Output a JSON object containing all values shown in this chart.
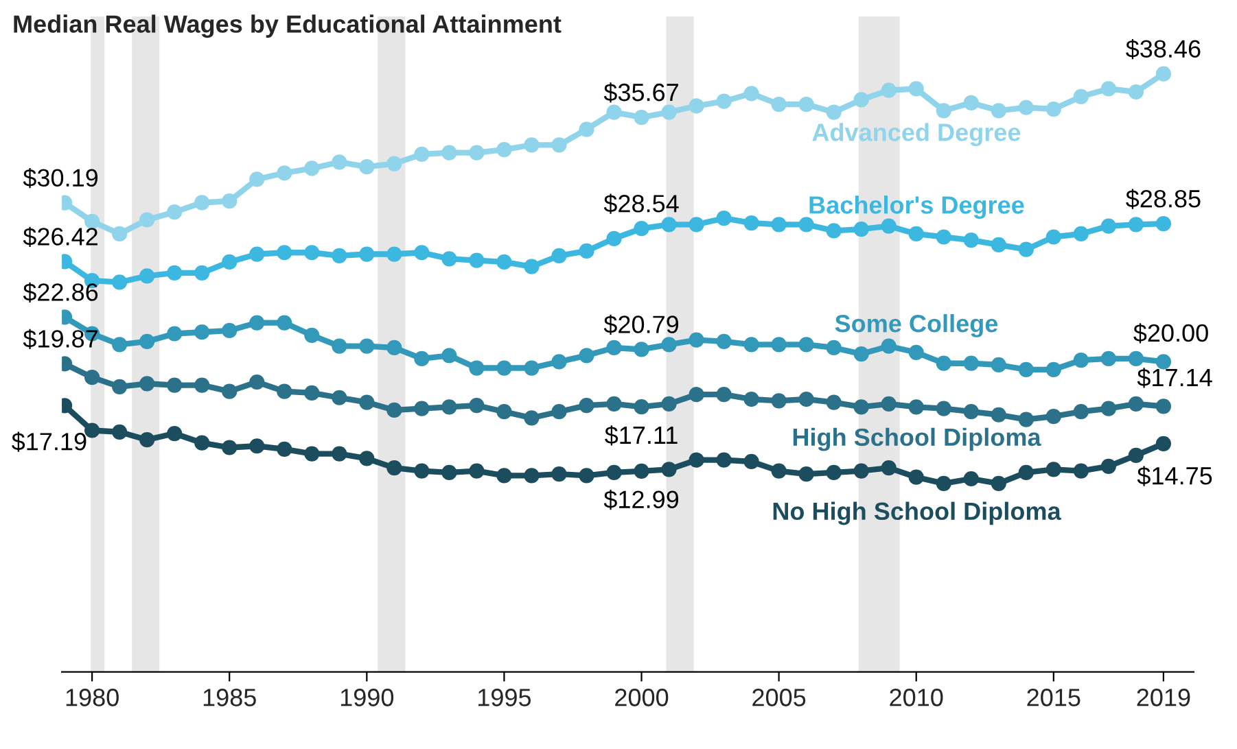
{
  "chart_data": {
    "type": "line",
    "title": "Median Real Wages by Educational Attainment",
    "x": [
      1979,
      1980,
      1981,
      1982,
      1983,
      1984,
      1985,
      1986,
      1987,
      1988,
      1989,
      1990,
      1991,
      1992,
      1993,
      1994,
      1995,
      1996,
      1997,
      1998,
      1999,
      2000,
      2001,
      2002,
      2003,
      2004,
      2005,
      2006,
      2007,
      2008,
      2009,
      2010,
      2011,
      2012,
      2013,
      2014,
      2015,
      2016,
      2017,
      2018,
      2019
    ],
    "xlim": [
      1978.9,
      2020.1
    ],
    "xticks": [
      1980,
      1985,
      1990,
      1995,
      2000,
      2005,
      2010,
      2015,
      2019
    ],
    "tick_labels": "x",
    "grid": false,
    "legend": false,
    "marker": "circle",
    "line_style": "solid",
    "series": [
      {
        "name": "Advanced Degree",
        "color": "#8fd4ea",
        "values": [
          30.19,
          29.0,
          28.2,
          29.1,
          29.6,
          30.2,
          30.3,
          31.7,
          32.1,
          32.4,
          32.8,
          32.5,
          32.7,
          33.3,
          33.4,
          33.4,
          33.6,
          33.9,
          33.9,
          34.9,
          36.0,
          35.67,
          36.0,
          36.4,
          36.7,
          37.2,
          36.5,
          36.5,
          36.0,
          36.8,
          37.4,
          37.5,
          36.1,
          36.6,
          36.1,
          36.3,
          36.2,
          37.0,
          37.5,
          37.3,
          38.46
        ],
        "value_labels": [
          "$30.19",
          null,
          null,
          null,
          null,
          null,
          null,
          null,
          null,
          null,
          null,
          null,
          null,
          null,
          null,
          null,
          null,
          null,
          null,
          null,
          null,
          "$35.67",
          null,
          null,
          null,
          null,
          null,
          null,
          null,
          null,
          null,
          null,
          null,
          null,
          null,
          null,
          null,
          null,
          null,
          null,
          "$38.46"
        ]
      },
      {
        "name": "Bachelor's Degree",
        "color": "#3bb7e0",
        "values": [
          26.42,
          25.2,
          25.1,
          25.5,
          25.7,
          25.7,
          26.4,
          26.9,
          27.0,
          27.0,
          26.8,
          26.9,
          26.9,
          27.0,
          26.6,
          26.5,
          26.4,
          26.1,
          26.8,
          27.1,
          27.9,
          28.54,
          28.8,
          28.8,
          29.2,
          28.9,
          28.8,
          28.8,
          28.4,
          28.5,
          28.7,
          28.2,
          28.0,
          27.8,
          27.5,
          27.2,
          28.0,
          28.2,
          28.7,
          28.8,
          28.85
        ],
        "value_labels": [
          "$26.42",
          null,
          null,
          null,
          null,
          null,
          null,
          null,
          null,
          null,
          null,
          null,
          null,
          null,
          null,
          null,
          null,
          null,
          null,
          null,
          null,
          "$28.54",
          null,
          null,
          null,
          null,
          null,
          null,
          null,
          null,
          null,
          null,
          null,
          null,
          null,
          null,
          null,
          null,
          null,
          null,
          "$28.85"
        ]
      },
      {
        "name": "Some College",
        "color": "#3399bb",
        "values": [
          22.86,
          21.8,
          21.1,
          21.3,
          21.8,
          21.9,
          22.0,
          22.5,
          22.5,
          21.7,
          21.0,
          21.0,
          20.9,
          20.2,
          20.4,
          19.6,
          19.6,
          19.6,
          20.0,
          20.4,
          20.9,
          20.79,
          21.1,
          21.4,
          21.3,
          21.1,
          21.1,
          21.1,
          20.9,
          20.5,
          21.0,
          20.6,
          19.9,
          19.9,
          19.8,
          19.5,
          19.5,
          20.1,
          20.2,
          20.2,
          20.0
        ],
        "value_labels": [
          "$22.86",
          null,
          null,
          null,
          null,
          null,
          null,
          null,
          null,
          null,
          null,
          null,
          null,
          null,
          null,
          null,
          null,
          null,
          null,
          null,
          null,
          "$20.79",
          null,
          null,
          null,
          null,
          null,
          null,
          null,
          null,
          null,
          null,
          null,
          null,
          null,
          null,
          null,
          null,
          null,
          null,
          "$20.00"
        ]
      },
      {
        "name": "High School Diploma",
        "color": "#2a7189",
        "values": [
          19.87,
          19.0,
          18.4,
          18.6,
          18.5,
          18.5,
          18.1,
          18.7,
          18.1,
          18.0,
          17.7,
          17.4,
          16.9,
          17.0,
          17.1,
          17.2,
          16.8,
          16.4,
          16.8,
          17.2,
          17.3,
          17.11,
          17.3,
          17.9,
          17.9,
          17.6,
          17.5,
          17.6,
          17.4,
          17.1,
          17.3,
          17.1,
          17.0,
          16.8,
          16.6,
          16.3,
          16.5,
          16.8,
          17.0,
          17.3,
          17.14
        ],
        "value_labels": [
          "$19.87",
          null,
          null,
          null,
          null,
          null,
          null,
          null,
          null,
          null,
          null,
          null,
          null,
          null,
          null,
          null,
          null,
          null,
          null,
          null,
          null,
          "$17.11",
          null,
          null,
          null,
          null,
          null,
          null,
          null,
          null,
          null,
          null,
          null,
          null,
          null,
          null,
          null,
          null,
          null,
          null,
          "$17.14"
        ]
      },
      {
        "name": "No High School Diploma",
        "color": "#1b4d5e",
        "values": [
          17.19,
          15.6,
          15.5,
          15.0,
          15.4,
          14.8,
          14.5,
          14.6,
          14.4,
          14.1,
          14.1,
          13.8,
          13.2,
          13.0,
          12.9,
          13.0,
          12.7,
          12.7,
          12.8,
          12.7,
          12.9,
          12.99,
          13.1,
          13.7,
          13.7,
          13.6,
          13.0,
          12.8,
          12.9,
          13.0,
          13.2,
          12.6,
          12.2,
          12.5,
          12.2,
          12.9,
          13.1,
          13.0,
          13.3,
          14.0,
          14.75
        ],
        "value_labels": [
          "$17.19",
          null,
          null,
          null,
          null,
          null,
          null,
          null,
          null,
          null,
          null,
          null,
          null,
          null,
          null,
          null,
          null,
          null,
          null,
          null,
          null,
          "$12.99",
          null,
          null,
          null,
          null,
          null,
          null,
          null,
          null,
          null,
          null,
          null,
          null,
          null,
          null,
          null,
          null,
          null,
          null,
          "$14.75"
        ]
      }
    ],
    "bands": [
      {
        "axis": "x",
        "from": 1979.95,
        "to": 1980.45,
        "color": "#e6e6e6"
      },
      {
        "axis": "x",
        "from": 1981.45,
        "to": 1982.45,
        "color": "#e6e6e6"
      },
      {
        "axis": "x",
        "from": 1990.4,
        "to": 1991.4,
        "color": "#e6e6e6"
      },
      {
        "axis": "x",
        "from": 2000.9,
        "to": 2001.9,
        "color": "#e6e6e6"
      },
      {
        "axis": "x",
        "from": 2007.9,
        "to": 2009.4,
        "color": "#e6e6e6"
      }
    ]
  }
}
